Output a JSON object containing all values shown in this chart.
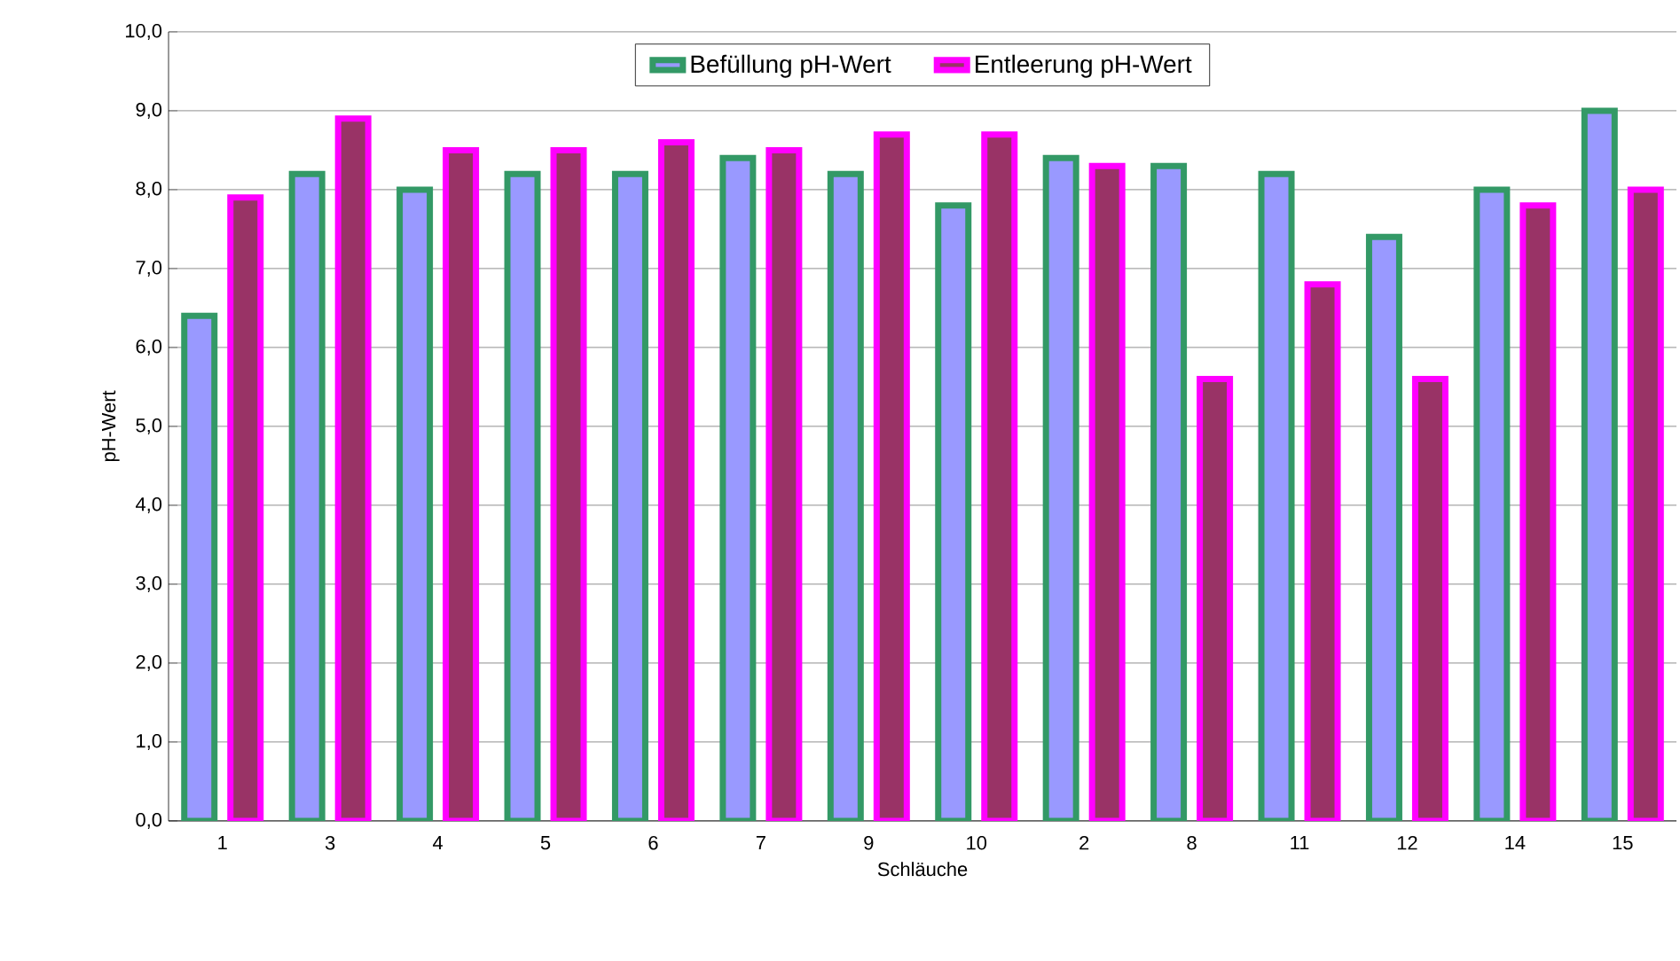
{
  "chart_data": {
    "type": "bar",
    "xlabel": "Schläuche",
    "ylabel": "pH-Wert",
    "categories": [
      "1",
      "3",
      "4",
      "5",
      "6",
      "7",
      "9",
      "10",
      "2",
      "8",
      "11",
      "12",
      "14",
      "15"
    ],
    "series": [
      {
        "name": "Befüllung pH-Wert",
        "color": "#9999ff",
        "values": [
          6.4,
          8.2,
          8.0,
          8.2,
          8.2,
          8.4,
          8.2,
          7.8,
          8.4,
          8.3,
          8.2,
          7.4,
          8.0,
          9.0
        ]
      },
      {
        "name": "Entleerung pH-Wert",
        "color": "#993366",
        "values": [
          7.9,
          8.9,
          8.5,
          8.5,
          8.6,
          8.5,
          8.7,
          8.7,
          8.3,
          5.6,
          6.8,
          5.6,
          7.8,
          8.0
        ]
      }
    ],
    "ylim": [
      0,
      10
    ],
    "yticks": [
      {
        "value": 0,
        "label": "0,0"
      },
      {
        "value": 1,
        "label": "1,0"
      },
      {
        "value": 2,
        "label": "2,0"
      },
      {
        "value": 3,
        "label": "3,0"
      },
      {
        "value": 4,
        "label": "4,0"
      },
      {
        "value": 5,
        "label": "5,0"
      },
      {
        "value": 6,
        "label": "6,0"
      },
      {
        "value": 7,
        "label": "7,0"
      },
      {
        "value": 8,
        "label": "8,0"
      },
      {
        "value": 9,
        "label": "9,0"
      },
      {
        "value": 10,
        "label": "10,0"
      }
    ],
    "grid": "y",
    "legend": "top"
  }
}
